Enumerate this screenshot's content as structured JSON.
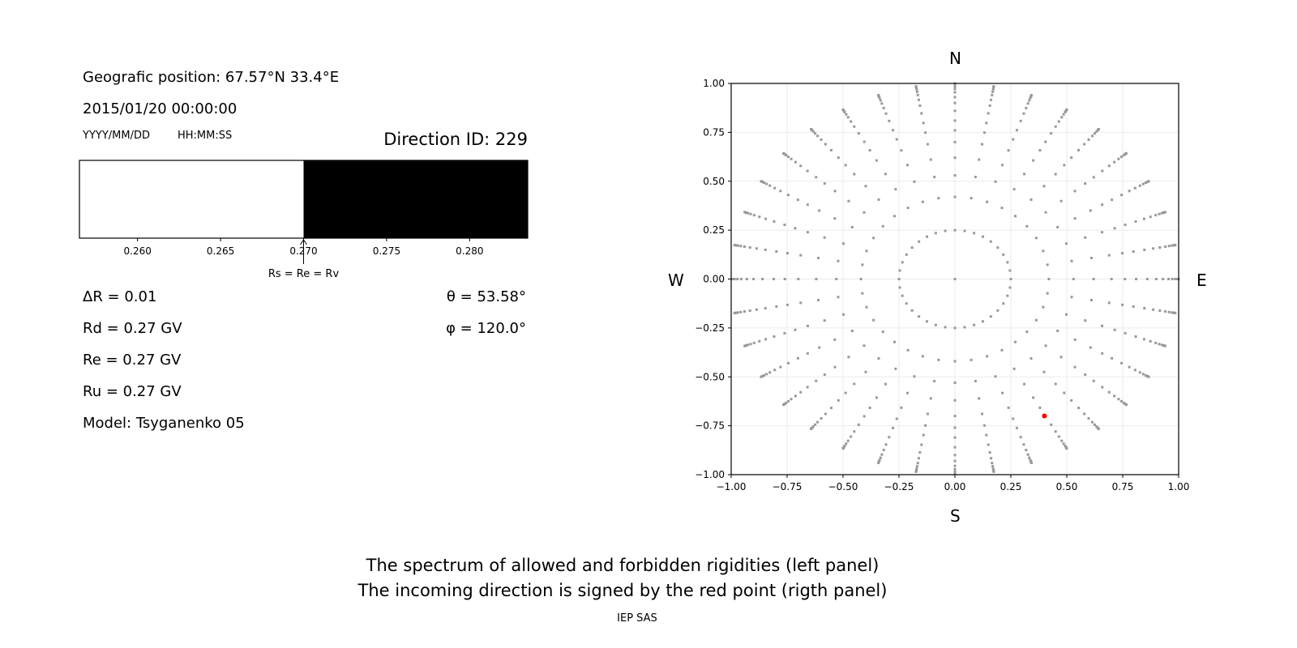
{
  "left_panel": {
    "position": "Geografic position: 67.57°N 33.4°E",
    "datetime": "2015/01/20 00:00:00",
    "date_format": "YYYY/MM/DD",
    "time_format": "HH:MM:SS",
    "direction_id": "Direction ID: 229",
    "delta_r": "ΔR = 0.01",
    "rd": "Rd = 0.27 GV",
    "re": "Re = 0.27 GV",
    "ru": "Ru = 0.27 GV",
    "model": "Model: Tsyganenko 05",
    "theta": "θ = 53.58°",
    "phi": "φ = 120.0°"
  },
  "right_panel": {
    "north": "N",
    "south": "S",
    "west": "W",
    "east": "E"
  },
  "caption": {
    "line1": "The spectrum of allowed and forbidden rigidities (left panel)",
    "line2": "The incoming direction is signed by the red point (rigth panel)",
    "credit": "IEP SAS"
  },
  "chart_data": [
    {
      "type": "bar",
      "xlim": [
        0.2565,
        0.2835
      ],
      "xticks": [
        "0.260",
        "0.265",
        "0.270",
        "0.275",
        "0.280"
      ],
      "xtick_values": [
        0.26,
        0.265,
        0.27,
        0.275,
        0.28
      ],
      "segments": [
        {
          "from": 0.2565,
          "to": 0.27,
          "color": "#ffffff"
        },
        {
          "from": 0.27,
          "to": 0.2835,
          "color": "#000000"
        }
      ],
      "annotation": {
        "text": "Rs = Re = Rv",
        "x": 0.27
      }
    },
    {
      "type": "scatter",
      "xlim": [
        -1,
        1
      ],
      "ylim": [
        -1,
        1
      ],
      "xticks": [
        "−1.00",
        "−0.75",
        "−0.50",
        "−0.25",
        "0.00",
        "0.25",
        "0.50",
        "0.75",
        "1.00"
      ],
      "yticks": [
        "−1.00",
        "−0.75",
        "−0.50",
        "−0.25",
        "0.00",
        "0.25",
        "0.50",
        "0.75",
        "1.00"
      ],
      "tick_values": [
        -1,
        -0.75,
        -0.5,
        -0.25,
        0,
        0.25,
        0.5,
        0.75,
        1
      ],
      "grid": true,
      "grid_point_color": "#999999",
      "grid_points": {
        "center": [
          0,
          0
        ],
        "inner_ring_radius": 0.25,
        "azimuth_step_deg": 10,
        "spoke_radii": [
          0.42,
          0.53,
          0.62,
          0.7,
          0.76,
          0.81,
          0.86,
          0.9,
          0.93,
          0.955,
          0.972,
          0.985,
          0.993,
          0.998,
          1.0
        ]
      },
      "highlight_point": {
        "x": 0.4,
        "y": -0.7,
        "color": "#ff0000"
      }
    }
  ]
}
